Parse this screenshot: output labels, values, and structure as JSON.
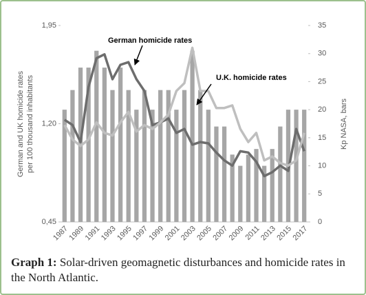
{
  "chart_data": {
    "type": "bar-line",
    "categories": [
      "1987",
      null,
      "1989",
      null,
      "1991",
      null,
      "1993",
      null,
      "1995",
      null,
      "1997",
      null,
      "1999",
      null,
      "2001",
      null,
      "2003",
      null,
      "2005",
      null,
      "2007",
      null,
      "2009",
      null,
      "2011",
      null,
      "2013",
      null,
      "2015",
      null,
      "2017"
    ],
    "series": [
      {
        "type": "bar",
        "axis": "y2",
        "color": "#a6a6a6",
        "values": [
          20,
          23.5,
          27.5,
          27.5,
          30.5,
          27.5,
          23.5,
          27.5,
          23.5,
          20,
          23.5,
          20,
          23.5,
          23.5,
          20,
          23.5,
          30.5,
          23.5,
          20,
          17,
          17,
          12,
          10,
          12,
          13,
          10,
          13,
          17,
          20,
          20,
          20
        ]
      },
      {
        "type": "line",
        "name": "German homicide rates",
        "color": "#6d6d6d",
        "values": [
          1.23,
          1.19,
          1.06,
          1.48,
          1.7,
          1.73,
          1.54,
          1.65,
          1.67,
          1.54,
          1.45,
          1.19,
          1.21,
          1.24,
          1.13,
          1.16,
          1.04,
          1.06,
          1.05,
          0.98,
          0.92,
          0.88,
          0.99,
          0.98,
          0.91,
          0.8,
          0.83,
          0.88,
          0.84,
          1.16,
          0.99
        ]
      },
      {
        "type": "line",
        "name": "U.K.  homicide rates",
        "color": "#bfbfbf",
        "values": [
          1.19,
          1.08,
          1.03,
          1.08,
          1.21,
          1.13,
          1.11,
          1.21,
          1.29,
          1.14,
          1.19,
          1.16,
          1.21,
          1.27,
          1.45,
          1.51,
          1.78,
          1.45,
          1.45,
          1.32,
          1.32,
          1.34,
          1.16,
          1.06,
          1.13,
          0.92,
          0.95,
          0.9,
          0.88,
          0.92,
          1.13
        ]
      }
    ],
    "ylabel": [
      "German and  UK homicide rates",
      "per 100 thousand inhabitants"
    ],
    "y2label": "Kp NASA, bars",
    "ylim": [
      0.45,
      1.95
    ],
    "yticks": [
      {
        "value": 0.45,
        "label": "0,45"
      },
      {
        "value": 1.2,
        "label": "1,20"
      },
      {
        "value": 1.95,
        "label": "1,95"
      }
    ],
    "y2lim": [
      0,
      35
    ],
    "y2ticks": [
      0,
      5,
      10,
      15,
      20,
      25,
      30,
      35
    ],
    "caption_label": "Graph 1:",
    "caption": "Solar-driven geomagnetic disturbances and homicide rates in the North Atlantic."
  }
}
